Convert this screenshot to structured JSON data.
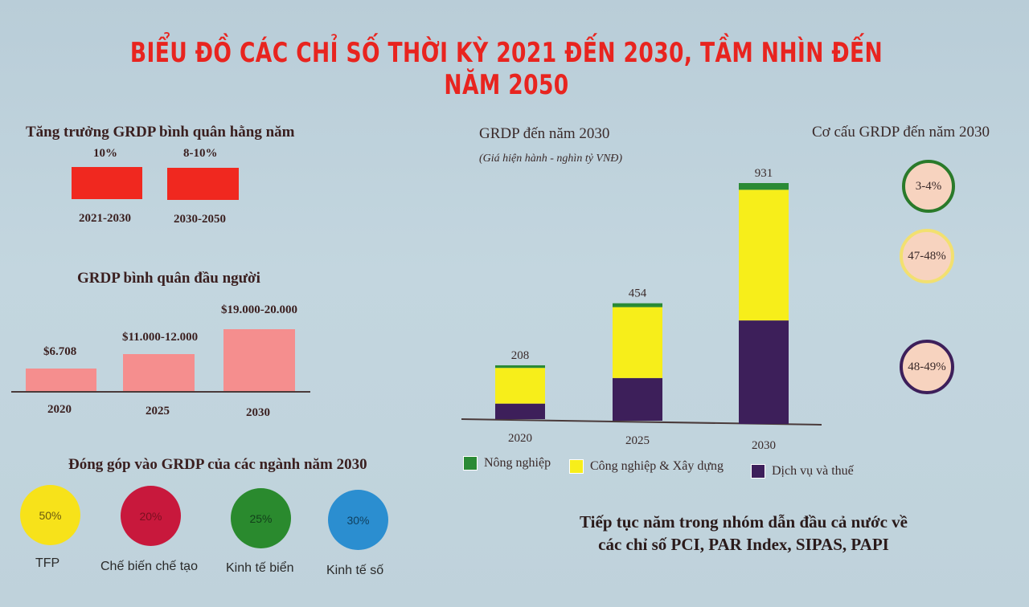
{
  "title": "BIỂU ĐỒ CÁC CHỈ SỐ THỜI KỲ 2021 ĐẾN 2030, TẦM NHÌN ĐẾN NĂM 2050",
  "growth": {
    "title": "Tăng trưởng GRDP bình quân hằng năm",
    "items": [
      {
        "value": "10%",
        "period": "2021-2030"
      },
      {
        "value": "8-10%",
        "period": "2030-2050"
      }
    ],
    "color": "#f0281f"
  },
  "per_capita": {
    "title": "GRDP bình quân đầu người",
    "items": [
      {
        "value": "$6.708",
        "year": "2020"
      },
      {
        "value": "$11.000-12.000",
        "year": "2025"
      },
      {
        "value": "$19.000-20.000",
        "year": "2030"
      }
    ],
    "color": "#f58e8e"
  },
  "contribution": {
    "title": "Đóng góp vào GRDP của các ngành năm 2030",
    "items": [
      {
        "value": "50%",
        "label": "TFP",
        "color": "#f7e21a"
      },
      {
        "value": "20%",
        "label": "Chế biến chế tạo",
        "color": "#c8183c"
      },
      {
        "value": "25%",
        "label": "Kinh tế biển",
        "color": "#2a8a2e"
      },
      {
        "value": "30%",
        "label": "Kinh tế số",
        "color": "#2b8ed0"
      }
    ]
  },
  "chart_data": {
    "type": "bar",
    "title": "GRDP đến năm 2030",
    "subtitle": "(Giá hiện hành - nghìn tỷ VNĐ)",
    "categories": [
      "2020",
      "2025",
      "2030"
    ],
    "totals": [
      208,
      454,
      931
    ],
    "stacked": true,
    "series": [
      {
        "name": "Dịch vụ và thuế",
        "color": "#3d1f5a",
        "values": [
          60,
          165,
          400
        ]
      },
      {
        "name": "Công nghiệp & Xây dựng",
        "color": "#f7ee1a",
        "values": [
          138,
          274,
          505
        ]
      },
      {
        "name": "Nông nghiệp",
        "color": "#2a8a35",
        "values": [
          10,
          15,
          26
        ]
      }
    ],
    "legend_order": [
      "Nông nghiệp",
      "Công nghiệp & Xây dựng",
      "Dịch vụ và thuế"
    ],
    "ylim": [
      0,
      931
    ]
  },
  "structure": {
    "title": "Cơ cấu GRDP đến năm 2030",
    "items": [
      {
        "value": "3-4%",
        "border": "#2a7a2a"
      },
      {
        "value": "47-48%",
        "border": "#f2e070"
      },
      {
        "value": "48-49%",
        "border": "#3d1f5a"
      }
    ]
  },
  "footer": {
    "line1": "Tiếp tục năm trong nhóm dẫn đầu cả nước về",
    "line2": "các chỉ số PCI, PAR Index, SIPAS, PAPI"
  }
}
